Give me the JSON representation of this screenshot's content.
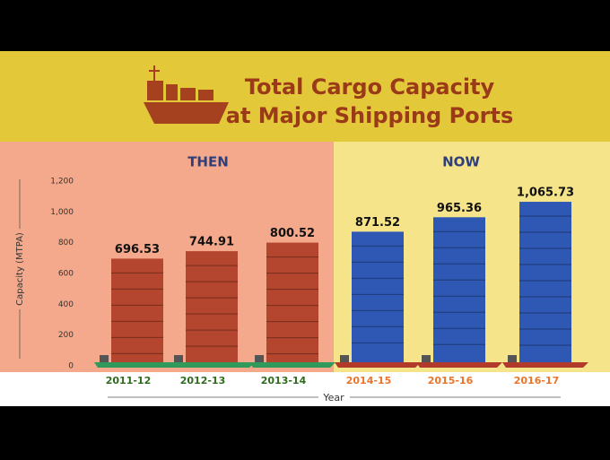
{
  "chart_data": {
    "type": "bar",
    "title": [
      "Total Cargo Capacity",
      "at Major Shipping Ports"
    ],
    "groups": [
      "THEN",
      "NOW"
    ],
    "y_label": "Capacity (MTPA)",
    "x_label": "Year",
    "categories": [
      "2011-12",
      "2012-13",
      "2013-14",
      "2014-15",
      "2015-16",
      "2016-17"
    ],
    "values": [
      696.53,
      744.91,
      800.52,
      871.52,
      965.36,
      1065.73
    ],
    "value_labels": [
      "696.53",
      "744.91",
      "800.52",
      "871.52",
      "965.36",
      "1,065.73"
    ],
    "colors": [
      "#b4452f",
      "#b4452f",
      "#b4452f",
      "#2f58b4",
      "#2f58b4",
      "#2f58b4"
    ],
    "label_colors": [
      "#2f6b1e",
      "#2f6b1e",
      "#2f6b1e",
      "#e9742a",
      "#e9742a",
      "#e9742a"
    ],
    "ylim": [
      0,
      1200
    ],
    "yticks": [
      0,
      200,
      400,
      600,
      800,
      {
        "value": 1000,
        "label": "1,000"
      },
      {
        "value": 1200,
        "label": "1,200"
      }
    ],
    "grid": false
  }
}
